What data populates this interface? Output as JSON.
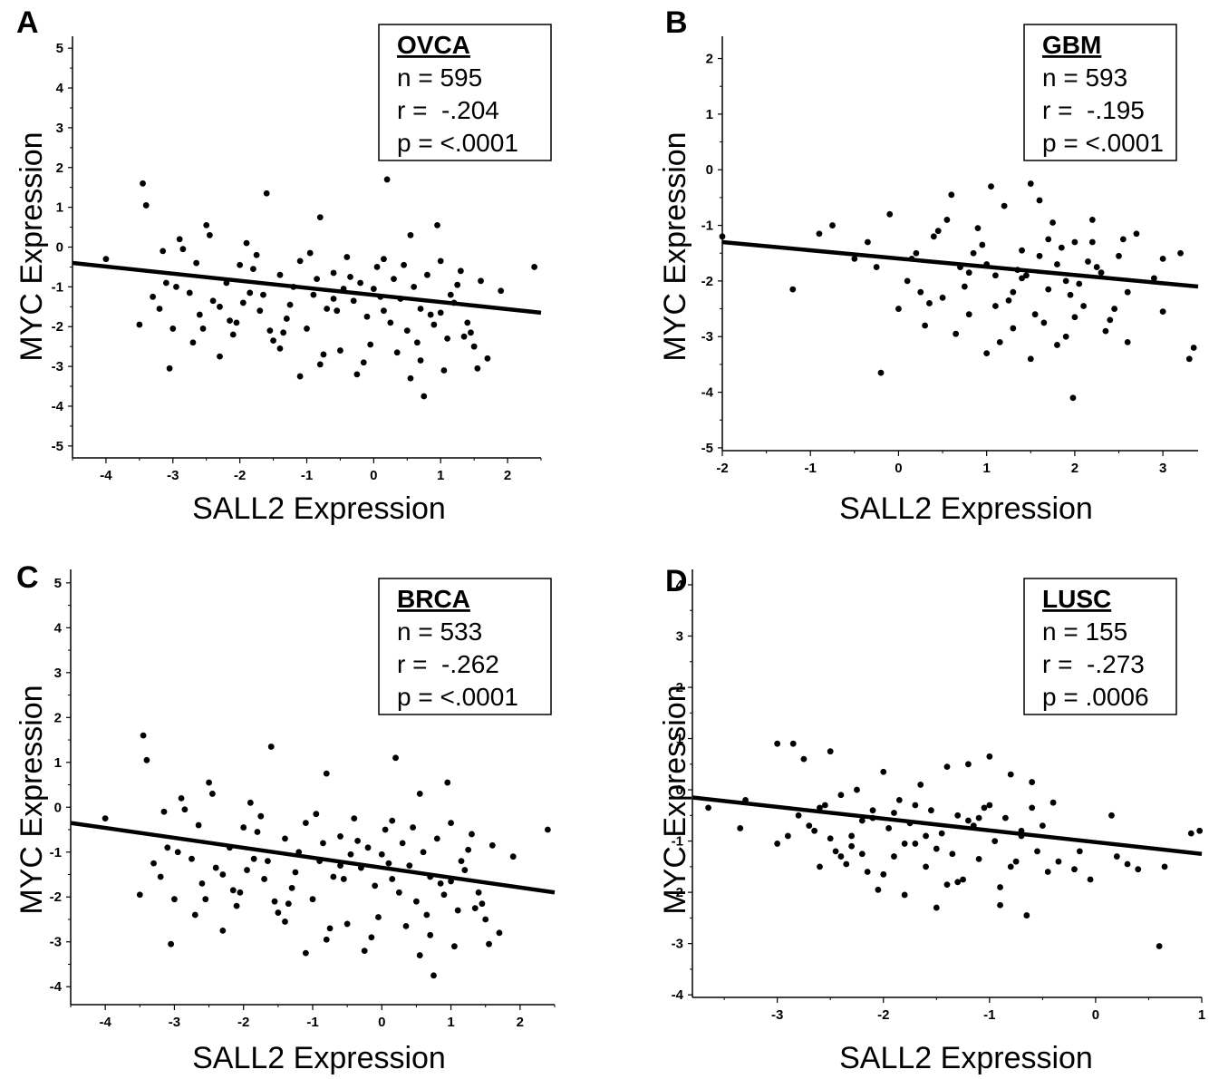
{
  "chart_data": [
    {
      "panel": "A",
      "type": "scatter",
      "cohort": "OVCA",
      "n_label": "n = 595",
      "r_label": "r =  -.204",
      "p_label": "p = <.0001",
      "xlabel": "SALL2 Expression",
      "ylabel": "MYC Expression",
      "xlim": [
        -4.5,
        2.5
      ],
      "ylim": [
        -5.3,
        5.3
      ],
      "xticks": [
        -4,
        -3,
        -2,
        -1,
        0,
        1,
        2
      ],
      "yticks": [
        -5,
        -4,
        -3,
        -2,
        -1,
        0,
        1,
        2,
        3,
        4,
        5
      ],
      "regression": {
        "x": [
          -4.5,
          2.5
        ],
        "y": [
          -0.4,
          -1.65
        ]
      },
      "points": {
        "x": [
          -4.0,
          -3.5,
          -3.45,
          -3.3,
          -3.15,
          -3.05,
          -2.85,
          -2.75,
          -2.65,
          -2.55,
          -2.45,
          -2.4,
          -2.3,
          -2.2,
          -2.1,
          -2.0,
          -1.95,
          -1.85,
          -1.75,
          -1.7,
          -1.6,
          -1.5,
          -1.4,
          -1.3,
          -1.2,
          -1.1,
          -1.0,
          -0.9,
          -0.8,
          -0.7,
          -0.6,
          -0.5,
          -0.4,
          -0.3,
          -0.2,
          -0.1,
          0.0,
          0.05,
          0.15,
          0.2,
          0.3,
          0.4,
          0.5,
          0.55,
          0.6,
          0.7,
          0.75,
          0.8,
          0.9,
          1.0,
          1.1,
          1.2,
          1.3,
          1.4,
          1.5,
          1.6,
          1.7,
          1.9,
          2.4,
          -3.0,
          -2.9,
          -2.6,
          -2.3,
          -1.9,
          -1.4,
          -1.1,
          -0.8,
          -0.6,
          -0.35,
          -0.15,
          0.1,
          0.35,
          0.45,
          0.65,
          0.85,
          1.05,
          1.25,
          1.45,
          -3.2,
          -2.95,
          -2.7,
          -2.5,
          -2.15,
          -1.8,
          -1.55,
          -1.25,
          -0.95,
          -0.75,
          -0.45,
          -0.25,
          0.25,
          0.7,
          0.95,
          1.15,
          1.35,
          1.55,
          -3.4,
          -3.1,
          -2.05,
          -1.65,
          -1.35,
          -0.85,
          -0.55,
          -0.05,
          0.15,
          0.55,
          1.0
        ],
        "y": [
          -0.3,
          -1.95,
          1.6,
          -1.25,
          -0.1,
          -3.05,
          -0.05,
          -1.15,
          -0.4,
          -2.05,
          0.3,
          -1.35,
          -1.5,
          -0.9,
          -2.2,
          -0.45,
          -1.4,
          -1.15,
          -0.2,
          -1.6,
          1.35,
          -2.35,
          -0.7,
          -1.8,
          -1.0,
          -0.35,
          -2.05,
          -1.2,
          0.75,
          -1.55,
          -0.65,
          -2.6,
          -0.25,
          -1.35,
          -0.9,
          -1.75,
          -1.05,
          -0.5,
          -1.6,
          1.7,
          -0.8,
          -1.3,
          -2.1,
          0.3,
          -1.0,
          -1.55,
          -3.75,
          -0.7,
          -1.95,
          -0.35,
          -2.3,
          -1.4,
          -0.6,
          -1.9,
          -2.5,
          -0.85,
          -2.8,
          -1.1,
          -0.5,
          -2.05,
          0.2,
          -1.7,
          -2.75,
          0.1,
          -2.55,
          -3.25,
          -2.95,
          -1.3,
          -0.75,
          -2.9,
          -1.25,
          -2.65,
          -0.45,
          -2.4,
          -1.7,
          -3.1,
          -0.95,
          -2.15,
          -1.55,
          -1.0,
          -2.4,
          0.55,
          -1.85,
          -0.55,
          -2.1,
          -1.45,
          -0.15,
          -2.7,
          -1.05,
          -3.2,
          -1.9,
          -2.85,
          0.55,
          -1.2,
          -2.25,
          -3.05,
          1.05,
          -0.9,
          -1.9,
          -1.2,
          -2.15,
          -0.8,
          -1.6,
          -2.45,
          -0.3,
          -3.3,
          -1.65
        ]
      }
    },
    {
      "panel": "B",
      "type": "scatter",
      "cohort": "GBM",
      "n_label": "n = 593",
      "r_label": "r =  -.195",
      "p_label": "p = <.0001",
      "xlabel": "SALL2 Expression",
      "ylabel": "MYC Expression",
      "xlim": [
        -2.0,
        3.4
      ],
      "ylim": [
        -5.05,
        2.4
      ],
      "xticks": [
        -2,
        -1,
        0,
        1,
        2,
        3
      ],
      "yticks": [
        -5,
        -4,
        -3,
        -2,
        -1,
        0,
        1,
        2
      ],
      "regression": {
        "x": [
          -2.0,
          3.4
        ],
        "y": [
          -1.3,
          -2.1
        ]
      },
      "points": {
        "x": [
          -2.0,
          -1.2,
          -0.9,
          -0.75,
          -0.5,
          -0.35,
          -0.2,
          -0.1,
          0.0,
          0.1,
          0.2,
          0.3,
          0.4,
          0.5,
          0.6,
          0.7,
          0.8,
          0.9,
          1.0,
          1.1,
          1.2,
          1.3,
          1.4,
          1.5,
          1.6,
          1.7,
          1.8,
          1.9,
          2.0,
          2.1,
          2.2,
          2.3,
          2.4,
          2.5,
          2.6,
          2.7,
          2.9,
          3.0,
          3.2,
          3.3,
          3.35,
          0.15,
          0.35,
          0.55,
          0.75,
          0.95,
          1.15,
          1.35,
          1.55,
          1.75,
          1.95,
          2.15,
          2.35,
          2.55,
          0.25,
          0.45,
          0.65,
          0.85,
          1.05,
          1.25,
          1.45,
          1.65,
          1.85,
          2.05,
          2.25,
          2.45,
          1.0,
          1.3,
          1.6,
          1.9,
          2.2,
          1.1,
          1.4,
          1.7,
          2.0,
          0.8,
          1.5,
          1.8,
          -0.25,
          1.98,
          2.6,
          3.0
        ],
        "y": [
          -1.2,
          -2.15,
          -1.15,
          -1.0,
          -1.6,
          -1.3,
          -3.65,
          -0.8,
          -2.5,
          -2.0,
          -1.5,
          -2.8,
          -1.2,
          -2.3,
          -0.45,
          -1.75,
          -2.6,
          -1.05,
          -3.3,
          -1.9,
          -0.65,
          -2.85,
          -1.45,
          -3.4,
          -0.55,
          -2.15,
          -1.7,
          -3.0,
          -1.3,
          -2.45,
          -0.9,
          -1.85,
          -2.7,
          -1.55,
          -2.2,
          -1.15,
          -1.95,
          -2.55,
          -1.5,
          -3.4,
          -3.2,
          -1.6,
          -2.4,
          -0.9,
          -2.1,
          -1.35,
          -3.1,
          -1.8,
          -2.6,
          -0.95,
          -2.25,
          -1.65,
          -2.9,
          -1.25,
          -2.2,
          -1.1,
          -2.95,
          -1.5,
          -0.3,
          -2.35,
          -1.9,
          -2.75,
          -1.4,
          -2.05,
          -1.75,
          -2.5,
          -1.7,
          -2.2,
          -1.55,
          -2.0,
          -1.3,
          -2.45,
          -1.95,
          -1.25,
          -2.65,
          -1.85,
          -0.25,
          -3.15,
          -1.75,
          -4.1,
          -3.1,
          -1.6
        ]
      }
    },
    {
      "panel": "C",
      "type": "scatter",
      "cohort": "BRCA",
      "n_label": "n = 533",
      "r_label": "r =  -.262",
      "p_label": "p = <.0001",
      "xlabel": "SALL2 Expression",
      "ylabel": "MYC Expression",
      "xlim": [
        -4.5,
        2.5
      ],
      "ylim": [
        -4.4,
        5.3
      ],
      "xticks": [
        -4,
        -3,
        -2,
        -1,
        0,
        1,
        2
      ],
      "yticks": [
        -4,
        -3,
        -2,
        -1,
        0,
        1,
        2,
        3,
        4,
        5
      ],
      "regression": {
        "x": [
          -4.5,
          2.5
        ],
        "y": [
          -0.35,
          -1.9
        ]
      },
      "points": {
        "x": [
          -4.0,
          -3.5,
          -3.45,
          -3.3,
          -3.15,
          -3.05,
          -2.85,
          -2.75,
          -2.65,
          -2.55,
          -2.45,
          -2.4,
          -2.3,
          -2.2,
          -2.1,
          -2.0,
          -1.95,
          -1.85,
          -1.75,
          -1.7,
          -1.6,
          -1.5,
          -1.4,
          -1.3,
          -1.2,
          -1.1,
          -1.0,
          -0.9,
          -0.8,
          -0.7,
          -0.6,
          -0.5,
          -0.4,
          -0.3,
          -0.2,
          -0.1,
          0.0,
          0.05,
          0.15,
          0.2,
          0.3,
          0.4,
          0.5,
          0.55,
          0.6,
          0.7,
          0.75,
          0.8,
          0.9,
          1.0,
          1.1,
          1.2,
          1.3,
          1.4,
          1.5,
          1.6,
          1.7,
          1.9,
          2.4,
          -3.0,
          -2.9,
          -2.6,
          -2.3,
          -1.9,
          -1.4,
          -1.1,
          -0.8,
          -0.6,
          -0.35,
          -0.15,
          0.1,
          0.35,
          0.45,
          0.65,
          0.85,
          1.05,
          1.25,
          1.45,
          -3.2,
          -2.95,
          -2.7,
          -2.5,
          -2.15,
          -1.8,
          -1.55,
          -1.25,
          -0.95,
          -0.75,
          -0.45,
          -0.25,
          0.25,
          0.7,
          0.95,
          1.15,
          1.35,
          1.55,
          -3.4,
          -3.1,
          -2.05,
          -1.65,
          -1.35,
          -0.85,
          -0.55,
          -0.05,
          0.15,
          0.55,
          1.0
        ],
        "y": [
          -0.25,
          -1.95,
          1.6,
          -1.25,
          -0.1,
          -3.05,
          -0.05,
          -1.15,
          -0.4,
          -2.05,
          0.3,
          -1.35,
          -1.5,
          -0.9,
          -2.2,
          -0.45,
          -1.4,
          -1.15,
          -0.2,
          -1.6,
          1.35,
          -2.35,
          -0.7,
          -1.8,
          -1.0,
          -0.35,
          -2.05,
          -1.2,
          0.75,
          -1.55,
          -0.65,
          -2.6,
          -0.25,
          -1.35,
          -0.9,
          -1.75,
          -1.05,
          -0.5,
          -1.6,
          1.1,
          -0.8,
          -1.3,
          -2.1,
          0.3,
          -1.0,
          -1.55,
          -3.75,
          -0.7,
          -1.95,
          -0.35,
          -2.3,
          -1.4,
          -0.6,
          -1.9,
          -2.5,
          -0.85,
          -2.8,
          -1.1,
          -0.5,
          -2.05,
          0.2,
          -1.7,
          -2.75,
          0.1,
          -2.55,
          -3.25,
          -2.95,
          -1.3,
          -0.75,
          -2.9,
          -1.25,
          -2.65,
          -0.45,
          -2.4,
          -1.7,
          -3.1,
          -0.95,
          -2.15,
          -1.55,
          -1.0,
          -2.4,
          0.55,
          -1.85,
          -0.55,
          -2.1,
          -1.45,
          -0.15,
          -2.7,
          -1.05,
          -3.2,
          -1.9,
          -2.85,
          0.55,
          -1.2,
          -2.25,
          -3.05,
          1.05,
          -0.9,
          -1.9,
          -1.2,
          -2.15,
          -0.8,
          -1.6,
          -2.45,
          -0.3,
          -3.3,
          -1.65
        ]
      }
    },
    {
      "panel": "D",
      "type": "scatter",
      "cohort": "LUSC",
      "n_label": "n = 155",
      "r_label": "r =  -.273",
      "p_label": "p = .0006",
      "xlabel": "SALL2 Expression",
      "ylabel": "MYC Expression",
      "xlim": [
        -3.8,
        1.0
      ],
      "ylim": [
        -4.05,
        4.3
      ],
      "xticks": [
        -3,
        -2,
        -1,
        0,
        1
      ],
      "yticks": [
        -4,
        -3,
        -2,
        -1,
        0,
        1,
        2,
        3,
        4
      ],
      "regression": {
        "x": [
          -3.8,
          1.0
        ],
        "y": [
          -0.15,
          -1.25
        ]
      },
      "points": {
        "x": [
          -3.65,
          -3.35,
          -3.3,
          -3.0,
          -3.0,
          -2.85,
          -2.8,
          -2.75,
          -2.65,
          -2.6,
          -2.55,
          -2.5,
          -2.45,
          -2.4,
          -2.35,
          -2.3,
          -2.25,
          -2.2,
          -2.15,
          -2.1,
          -2.05,
          -2.0,
          -1.95,
          -1.9,
          -1.85,
          -1.8,
          -1.75,
          -1.7,
          -1.65,
          -1.6,
          -1.55,
          -1.5,
          -1.45,
          -1.4,
          -1.35,
          -1.3,
          -1.25,
          -1.2,
          -1.15,
          -1.1,
          -1.05,
          -1.0,
          -0.95,
          -0.9,
          -0.85,
          -0.8,
          -0.75,
          -0.7,
          -0.65,
          -0.6,
          -0.55,
          -0.5,
          -0.45,
          -0.4,
          -0.35,
          -0.2,
          -0.15,
          -0.05,
          0.15,
          0.2,
          0.3,
          0.4,
          0.6,
          0.65,
          0.9,
          0.98,
          -2.9,
          -2.6,
          -2.3,
          -2.0,
          -1.7,
          -1.4,
          -1.1,
          -0.8,
          -2.5,
          -2.2,
          -1.9,
          -1.6,
          -1.3,
          -1.0,
          -0.7,
          -2.7,
          -2.4,
          -2.1,
          -1.8,
          -1.5,
          -1.2,
          -0.9,
          -0.6
        ],
        "y": [
          -0.35,
          -0.75,
          -0.2,
          0.9,
          -1.05,
          0.9,
          -0.5,
          0.6,
          -0.8,
          -1.5,
          -0.3,
          0.75,
          -1.2,
          -0.1,
          -1.45,
          -0.9,
          0.0,
          -0.6,
          -1.6,
          -0.4,
          -1.95,
          0.35,
          -0.75,
          -1.3,
          -0.2,
          -2.05,
          -0.65,
          -1.05,
          0.1,
          -1.5,
          -0.4,
          -2.3,
          -0.85,
          0.45,
          -1.25,
          -0.5,
          -1.75,
          0.5,
          -0.7,
          -1.35,
          -0.35,
          0.65,
          -1.0,
          -2.25,
          -0.55,
          0.3,
          -1.4,
          -0.8,
          -2.45,
          0.15,
          -1.2,
          -0.7,
          -1.6,
          -0.25,
          -1.4,
          -1.55,
          -1.2,
          -1.75,
          -0.5,
          -1.3,
          -1.45,
          -1.55,
          -3.05,
          -1.5,
          -0.85,
          -0.8,
          -0.9,
          -0.35,
          -1.1,
          -1.65,
          -0.3,
          -1.85,
          -0.55,
          -1.5,
          -0.95,
          -1.25,
          -0.45,
          -0.9,
          -1.8,
          -0.3,
          -0.9,
          -0.7,
          -1.3,
          -0.55,
          -1.05,
          -1.15,
          -0.6,
          -1.9,
          -0.35
        ]
      }
    }
  ]
}
